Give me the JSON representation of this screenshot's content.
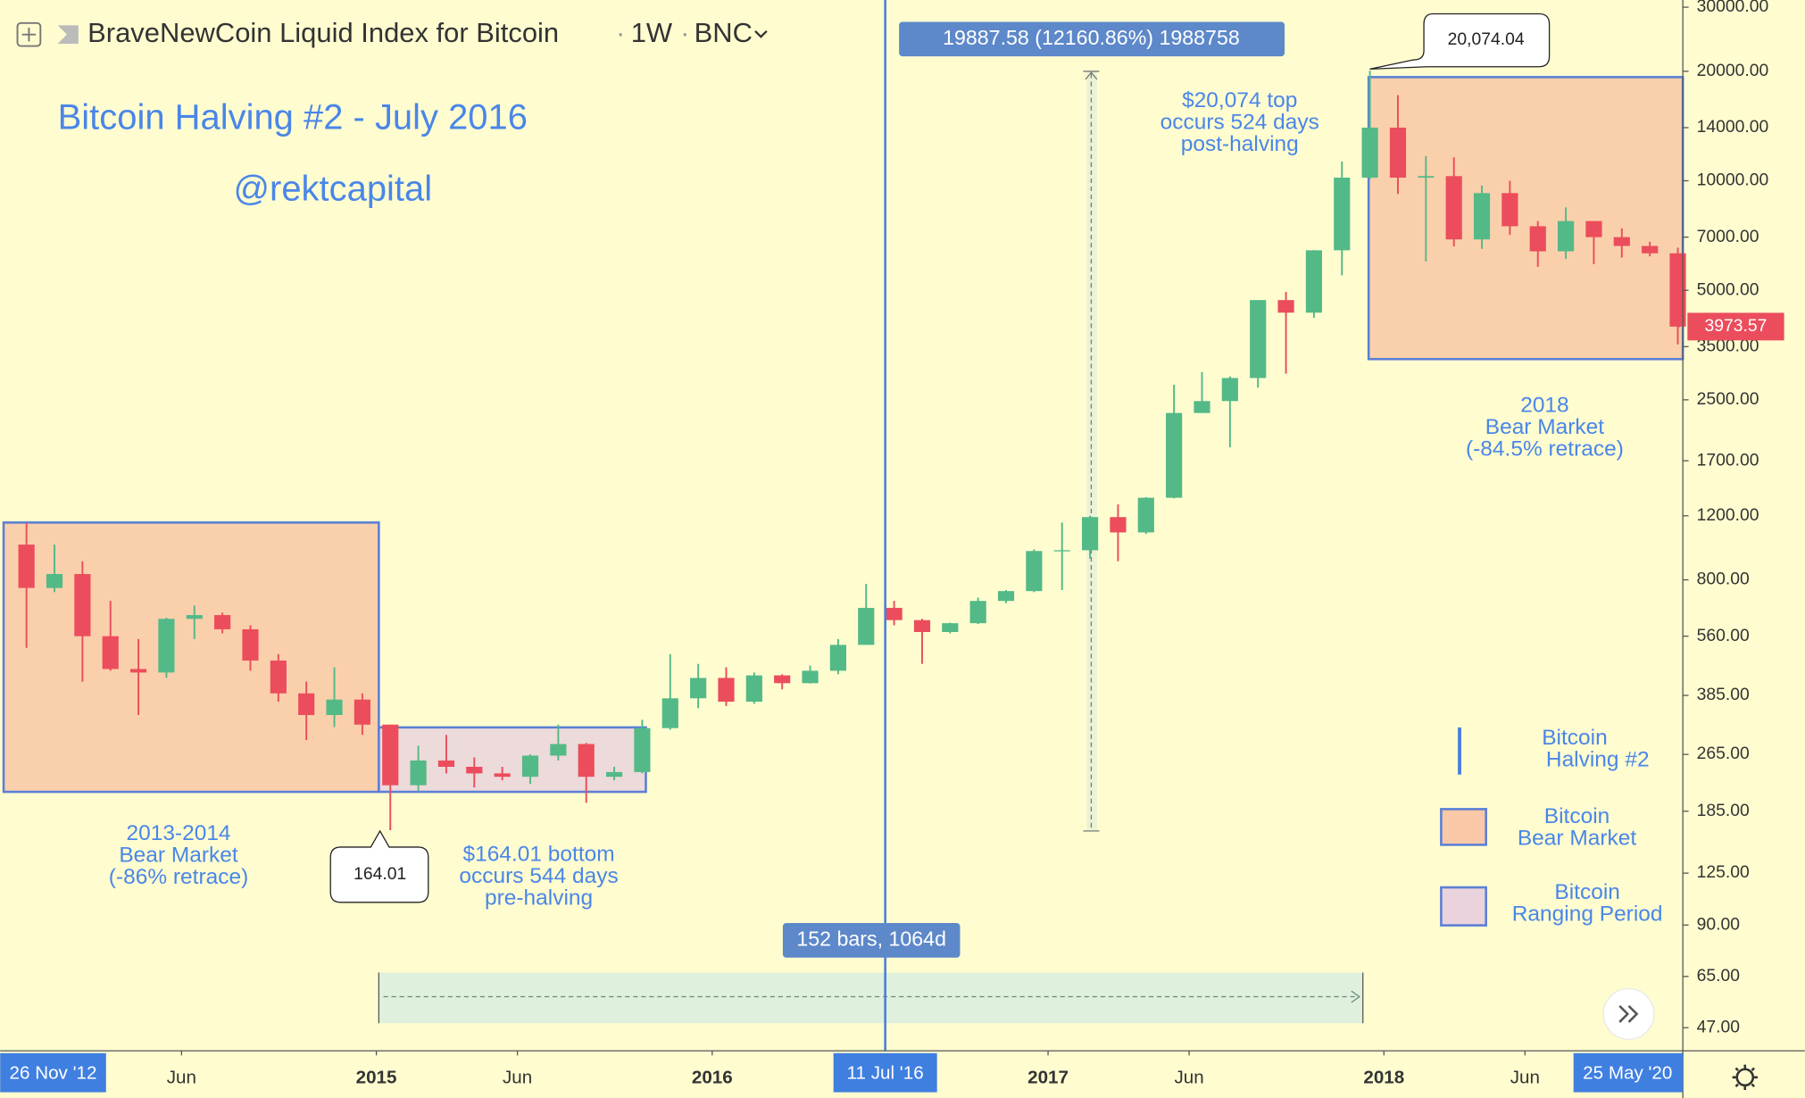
{
  "header": {
    "title": "BraveNewCoin Liquid Index for Bitcoin",
    "interval": "1W",
    "exchange": "BNC"
  },
  "headline": "Bitcoin Halving #2 - July 2016",
  "author": "@rektcapital",
  "range_labels": [
    "26 Nov '12",
    "11 Jul '16",
    "25 May '20"
  ],
  "measure": {
    "price": "19887.58 (12160.86%) 1988758",
    "time": "152 bars, 1064d"
  },
  "callouts": {
    "high": "20,074.04",
    "low": "164.01"
  },
  "annotations": {
    "top": [
      "$20,074 top",
      "occurs 524 days",
      "post-halving"
    ],
    "bear_2018": [
      "2018",
      "Bear Market",
      "(-84.5% retrace)"
    ],
    "bear_2014": [
      "2013-2014",
      "Bear Market",
      "(-86% retrace)"
    ],
    "bottom": [
      "$164.01 bottom",
      "occurs 544 days",
      "pre-halving"
    ]
  },
  "legend": [
    {
      "lines": [
        "Bitcoin",
        "Halving #2"
      ]
    },
    {
      "lines": [
        "Bitcoin",
        "Bear Market"
      ]
    },
    {
      "lines": [
        "Bitcoin",
        "Ranging Period"
      ]
    }
  ],
  "chart_data": {
    "type": "candlestick",
    "log_scale": true,
    "grid": false,
    "up_color": "#53b987",
    "down_color": "#eb4d5c",
    "x": [
      "2013-12",
      "2014-01",
      "2014-02",
      "2014-03",
      "2014-04",
      "2014-05",
      "2014-06",
      "2014-07",
      "2014-08",
      "2014-09",
      "2014-10",
      "2014-11",
      "2014-12",
      "2015-01",
      "2015-02",
      "2015-03",
      "2015-04",
      "2015-05",
      "2015-06",
      "2015-07",
      "2015-08",
      "2015-09",
      "2015-10",
      "2015-11",
      "2015-12",
      "2016-01",
      "2016-02",
      "2016-03",
      "2016-04",
      "2016-05",
      "2016-06",
      "2016-07",
      "2016-08",
      "2016-09",
      "2016-10",
      "2016-11",
      "2016-12",
      "2017-01",
      "2017-02",
      "2017-03",
      "2017-04",
      "2017-05",
      "2017-06",
      "2017-07",
      "2017-08",
      "2017-09",
      "2017-10",
      "2017-11",
      "2017-12",
      "2018-01",
      "2018-02",
      "2018-03",
      "2018-04",
      "2018-05",
      "2018-06",
      "2018-07",
      "2018-08",
      "2018-09",
      "2018-10",
      "2018-11"
    ],
    "open": [
      1000,
      760,
      830,
      560,
      455,
      445,
      625,
      640,
      585,
      480,
      390,
      340,
      375,
      320,
      218,
      255,
      245,
      235,
      230,
      263,
      283,
      230,
      237,
      313,
      378,
      430,
      370,
      437,
      416,
      450,
      530,
      670,
      620,
      575,
      608,
      700,
      745,
      960,
      965,
      1190,
      1080,
      1345,
      2300,
      2480,
      2870,
      4700,
      4340,
      6440,
      10200,
      14000,
      10200,
      10300,
      6900,
      9250,
      7500,
      6400,
      7750,
      7000,
      6620,
      6320
    ],
    "high": [
      1150,
      1000,
      900,
      700,
      550,
      630,
      680,
      650,
      600,
      500,
      420,
      460,
      390,
      320,
      280,
      300,
      260,
      245,
      265,
      320,
      285,
      245,
      330,
      500,
      470,
      460,
      445,
      440,
      465,
      550,
      780,
      700,
      625,
      610,
      715,
      750,
      970,
      1150,
      1200,
      1290,
      1350,
      2750,
      2980,
      2900,
      4700,
      4950,
      6450,
      11300,
      20074.04,
      17200,
      11700,
      11600,
      9700,
      10000,
      7750,
      8450,
      7750,
      7400,
      6800,
      6550
    ],
    "low": [
      520,
      740,
      420,
      450,
      340,
      430,
      550,
      570,
      450,
      370,
      290,
      315,
      300,
      164.01,
      210,
      235,
      215,
      225,
      220,
      255,
      195,
      225,
      235,
      310,
      355,
      360,
      365,
      400,
      415,
      440,
      530,
      600,
      470,
      570,
      605,
      690,
      740,
      750,
      915,
      900,
      1070,
      1340,
      2300,
      1850,
      2700,
      2950,
      4200,
      5500,
      10100,
      9200,
      6000,
      6600,
      6500,
      7100,
      5800,
      6100,
      5900,
      6150,
      6200,
      3550
    ],
    "close": [
      760,
      830,
      560,
      455,
      445,
      625,
      640,
      585,
      480,
      390,
      340,
      375,
      320,
      218,
      255,
      245,
      235,
      230,
      263,
      283,
      230,
      237,
      313,
      378,
      430,
      370,
      437,
      416,
      450,
      530,
      670,
      620,
      575,
      608,
      700,
      745,
      960,
      965,
      1190,
      1080,
      1345,
      2300,
      2480,
      2870,
      4700,
      4340,
      6440,
      10200,
      14000,
      10200,
      10300,
      6900,
      9250,
      7500,
      6400,
      7750,
      7000,
      6620,
      6320,
      3973.57
    ],
    "xlim": [
      2013.88,
      2018.89
    ],
    "xticks": [
      {
        "value": 2014.42,
        "label": "Jun"
      },
      2015,
      {
        "value": 2015.42,
        "label": "Jun"
      },
      2016,
      2017,
      {
        "value": 2017.42,
        "label": "Jun"
      },
      2018,
      {
        "value": 2018.42,
        "label": "Jun"
      }
    ],
    "ylim": [
      40.6,
      31400
    ],
    "yticks": [
      {
        "value": 30000,
        "label": "30000.00"
      },
      {
        "value": 20000,
        "label": "20000.00"
      },
      {
        "value": 14000,
        "label": "14000.00"
      },
      {
        "value": 10000,
        "label": "10000.00"
      },
      {
        "value": 7000,
        "label": "7000.00"
      },
      {
        "value": 5000,
        "label": "5000.00"
      },
      {
        "value": 3500,
        "label": "3500.00"
      },
      {
        "value": 2500,
        "label": "2500.00"
      },
      {
        "value": 1700,
        "label": "1700.00"
      },
      {
        "value": 1200,
        "label": "1200.00"
      },
      {
        "value": 800,
        "label": "800.00"
      },
      {
        "value": 560,
        "label": "560.00"
      },
      {
        "value": 385,
        "label": "385.00"
      },
      {
        "value": 265,
        "label": "265.00"
      },
      {
        "value": 185,
        "label": "185.00"
      },
      {
        "value": 125,
        "label": "125.00"
      },
      {
        "value": 90,
        "label": "90.00"
      },
      {
        "value": 65,
        "label": "65.00"
      },
      {
        "value": 47,
        "label": "47.00"
      }
    ]
  }
}
